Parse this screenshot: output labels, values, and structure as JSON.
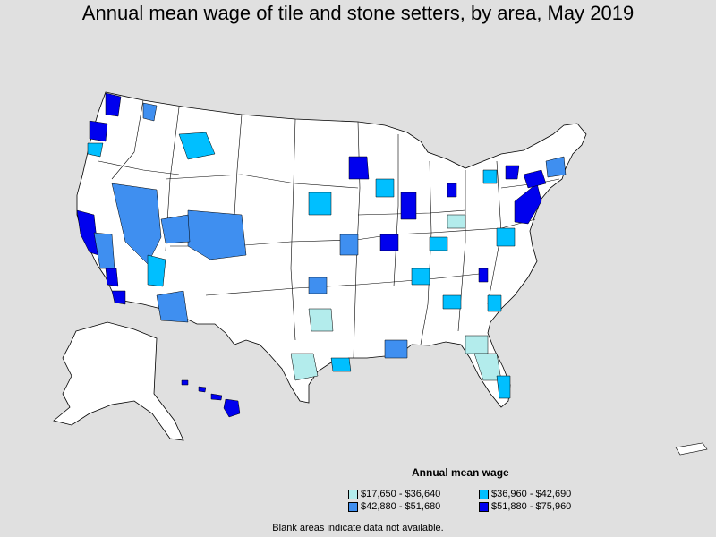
{
  "title": "Annual mean wage of tile and stone setters, by area, May 2019",
  "legend": {
    "title": "Annual mean wage",
    "items": [
      {
        "label": "$17,650 - $36,640",
        "color": "#b3ecec"
      },
      {
        "label": "$36,960 - $42,690",
        "color": "#00bfff"
      },
      {
        "label": "$42,880 - $51,680",
        "color": "#3f8ff0"
      },
      {
        "label": "$51,880 - $75,960",
        "color": "#0000ee"
      }
    ]
  },
  "footnote": "Blank areas indicate data not available.",
  "colors": {
    "background": "#e0e0e0",
    "land": "#ffffff",
    "border": "#000000"
  }
}
